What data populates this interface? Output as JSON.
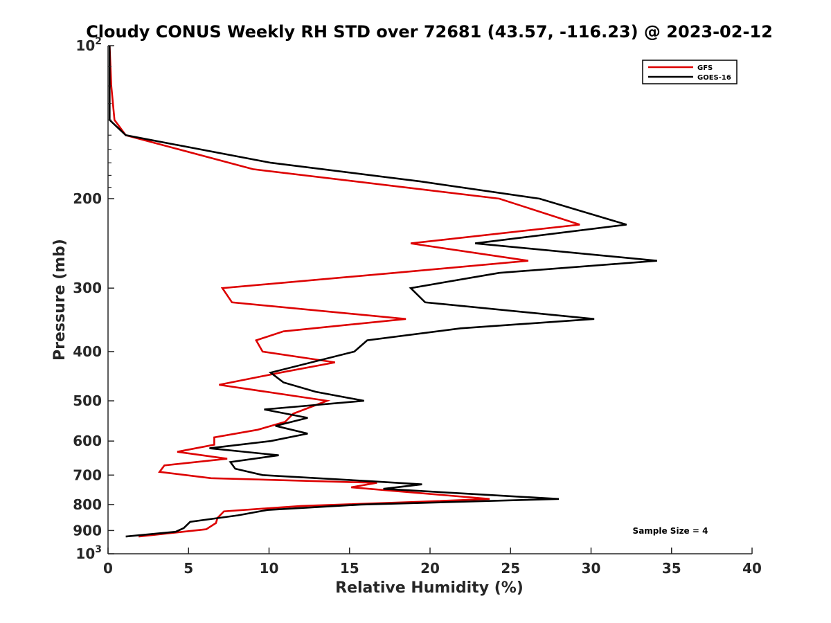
{
  "chart_data": {
    "type": "line",
    "title": "Cloudy CONUS Weekly RH STD over 72681 (43.57, -116.23) @ 2023-02-12",
    "xlabel": "Relative Humidity (%)",
    "ylabel": "Pressure (mb)",
    "xlim": [
      0,
      40
    ],
    "ylim": [
      100,
      1000
    ],
    "y_scale": "log",
    "y_reversed": true,
    "x_ticks": [
      "0",
      "5",
      "10",
      "15",
      "20",
      "25",
      "30",
      "35",
      "40"
    ],
    "y_ticks": [
      {
        "value": 100,
        "label": "10",
        "sup": "2"
      },
      {
        "value": 200,
        "label": "200"
      },
      {
        "value": 300,
        "label": "300"
      },
      {
        "value": 400,
        "label": "400"
      },
      {
        "value": 500,
        "label": "500"
      },
      {
        "value": 600,
        "label": "600"
      },
      {
        "value": 700,
        "label": "700"
      },
      {
        "value": 800,
        "label": "800"
      },
      {
        "value": 900,
        "label": "900"
      },
      {
        "value": 1000,
        "label": "10",
        "sup": "3"
      }
    ],
    "grid": false,
    "legend": "top-right",
    "series": [
      {
        "name": "GFS",
        "color": "#dd0000",
        "points": [
          [
            0.1,
            100
          ],
          [
            0.2,
            120
          ],
          [
            0.4,
            140
          ],
          [
            1.1,
            150
          ],
          [
            9,
            175
          ],
          [
            24.3,
            200
          ],
          [
            29.3,
            225
          ],
          [
            18.8,
            245
          ],
          [
            26.1,
            265
          ],
          [
            17.8,
            280
          ],
          [
            7.1,
            300
          ],
          [
            7.7,
            320
          ],
          [
            18.5,
            345
          ],
          [
            10.9,
            365
          ],
          [
            9.2,
            380
          ],
          [
            9.6,
            400
          ],
          [
            14.1,
            420
          ],
          [
            10.7,
            440
          ],
          [
            6.9,
            465
          ],
          [
            13.6,
            500
          ],
          [
            11.5,
            530
          ],
          [
            11,
            550
          ],
          [
            9.3,
            570
          ],
          [
            6.6,
            590
          ],
          [
            6.6,
            610
          ],
          [
            4.3,
            630
          ],
          [
            7.4,
            650
          ],
          [
            3.5,
            670
          ],
          [
            3.2,
            690
          ],
          [
            6.4,
            710
          ],
          [
            16.7,
            725
          ],
          [
            15.1,
            740
          ],
          [
            23.7,
            780
          ],
          [
            19.3,
            790
          ],
          [
            12,
            805
          ],
          [
            7.2,
            825
          ],
          [
            6.8,
            850
          ],
          [
            6.7,
            870
          ],
          [
            6.1,
            895
          ],
          [
            1.9,
            925
          ]
        ]
      },
      {
        "name": "GOES-16",
        "color": "#000000",
        "points": [
          [
            0.1,
            100
          ],
          [
            0.1,
            130
          ],
          [
            0.1,
            140
          ],
          [
            1.1,
            150
          ],
          [
            10.1,
            170
          ],
          [
            19.4,
            185
          ],
          [
            26.8,
            200
          ],
          [
            32.2,
            225
          ],
          [
            22.8,
            245
          ],
          [
            34.1,
            265
          ],
          [
            24.3,
            280
          ],
          [
            18.8,
            300
          ],
          [
            19.7,
            320
          ],
          [
            30.2,
            345
          ],
          [
            21.9,
            360
          ],
          [
            16.1,
            380
          ],
          [
            15.3,
            400
          ],
          [
            10.1,
            440
          ],
          [
            10.9,
            460
          ],
          [
            12.9,
            480
          ],
          [
            15.9,
            500
          ],
          [
            9.7,
            520
          ],
          [
            12.4,
            540
          ],
          [
            10.4,
            560
          ],
          [
            12.4,
            580
          ],
          [
            10.1,
            600
          ],
          [
            6.3,
            620
          ],
          [
            10.6,
            640
          ],
          [
            7.6,
            660
          ],
          [
            7.9,
            680
          ],
          [
            9.6,
            700
          ],
          [
            16.4,
            720
          ],
          [
            19.5,
            730
          ],
          [
            17.1,
            745
          ],
          [
            28,
            780
          ],
          [
            15.7,
            800
          ],
          [
            9.9,
            820
          ],
          [
            8.1,
            840
          ],
          [
            5.1,
            865
          ],
          [
            4.7,
            890
          ],
          [
            4.2,
            905
          ],
          [
            1.1,
            925
          ]
        ]
      }
    ],
    "annotation": "Sample Size = 4"
  }
}
